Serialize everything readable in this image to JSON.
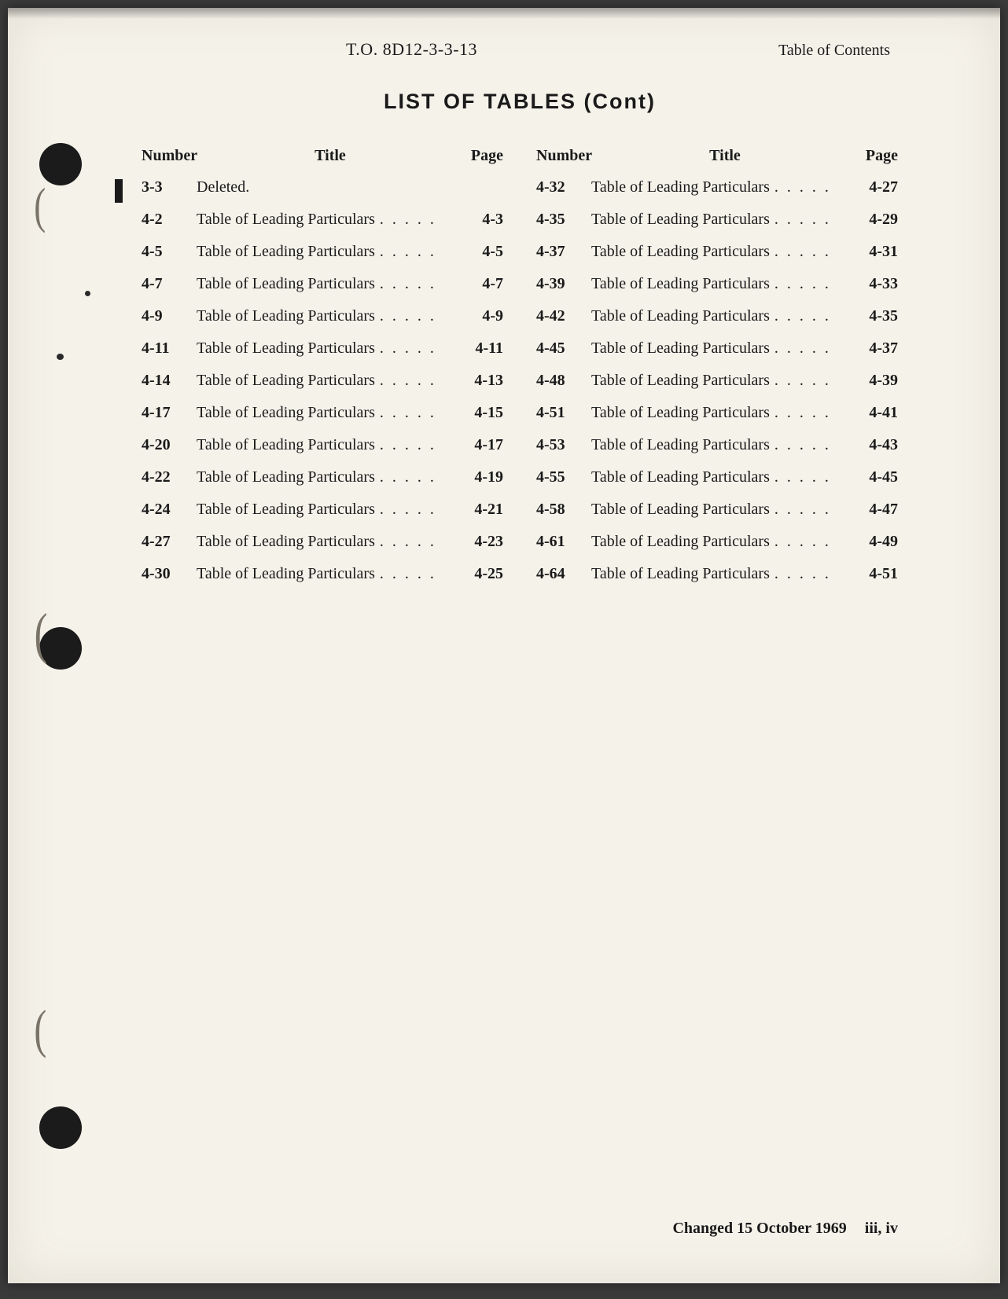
{
  "doc_id": "T.O. 8D12-3-3-13",
  "toc_label": "Table of Contents",
  "title": "LIST OF TABLES (Cont)",
  "headers": {
    "number": "Number",
    "title": "Title",
    "page": "Page"
  },
  "dots": ". . . . .",
  "left_col": [
    {
      "num": "3-3",
      "title": "Deleted.",
      "page": "",
      "no_dots": true
    },
    {
      "num": "4-2",
      "title": "Table of Leading Particulars",
      "page": "4-3"
    },
    {
      "num": "4-5",
      "title": "Table of Leading Particulars",
      "page": "4-5"
    },
    {
      "num": "4-7",
      "title": "Table of Leading Particulars",
      "page": "4-7"
    },
    {
      "num": "4-9",
      "title": "Table of Leading Particulars",
      "page": "4-9"
    },
    {
      "num": "4-11",
      "title": "Table of Leading Particulars",
      "page": "4-11"
    },
    {
      "num": "4-14",
      "title": "Table of Leading Particulars",
      "page": "4-13"
    },
    {
      "num": "4-17",
      "title": "Table of Leading Particulars",
      "page": "4-15"
    },
    {
      "num": "4-20",
      "title": "Table of Leading Particulars",
      "page": "4-17"
    },
    {
      "num": "4-22",
      "title": "Table of Leading Particulars",
      "page": "4-19"
    },
    {
      "num": "4-24",
      "title": "Table of Leading Particulars",
      "page": "4-21"
    },
    {
      "num": "4-27",
      "title": "Table of Leading Particulars",
      "page": "4-23"
    },
    {
      "num": "4-30",
      "title": "Table of Leading Particulars",
      "page": "4-25"
    }
  ],
  "right_col": [
    {
      "num": "4-32",
      "title": "Table of Leading Particulars",
      "page": "4-27"
    },
    {
      "num": "4-35",
      "title": "Table of Leading Particulars",
      "page": "4-29"
    },
    {
      "num": "4-37",
      "title": "Table of Leading Particulars",
      "page": "4-31"
    },
    {
      "num": "4-39",
      "title": "Table of Leading Particulars",
      "page": "4-33"
    },
    {
      "num": "4-42",
      "title": "Table of Leading Particulars",
      "page": "4-35"
    },
    {
      "num": "4-45",
      "title": "Table of Leading Particulars",
      "page": "4-37"
    },
    {
      "num": "4-48",
      "title": "Table of Leading Particulars",
      "page": "4-39"
    },
    {
      "num": "4-51",
      "title": "Table of Leading Particulars",
      "page": "4-41"
    },
    {
      "num": "4-53",
      "title": "Table of Leading Particulars",
      "page": "4-43"
    },
    {
      "num": "4-55",
      "title": "Table of Leading Particulars",
      "page": "4-45"
    },
    {
      "num": "4-58",
      "title": "Table of Leading Particulars",
      "page": "4-47"
    },
    {
      "num": "4-61",
      "title": "Table of Leading Particulars",
      "page": "4-49"
    },
    {
      "num": "4-64",
      "title": "Table of Leading Particulars",
      "page": "4-51"
    }
  ],
  "footer_change": "Changed 15 October 1969",
  "footer_pages": "iii, iv"
}
